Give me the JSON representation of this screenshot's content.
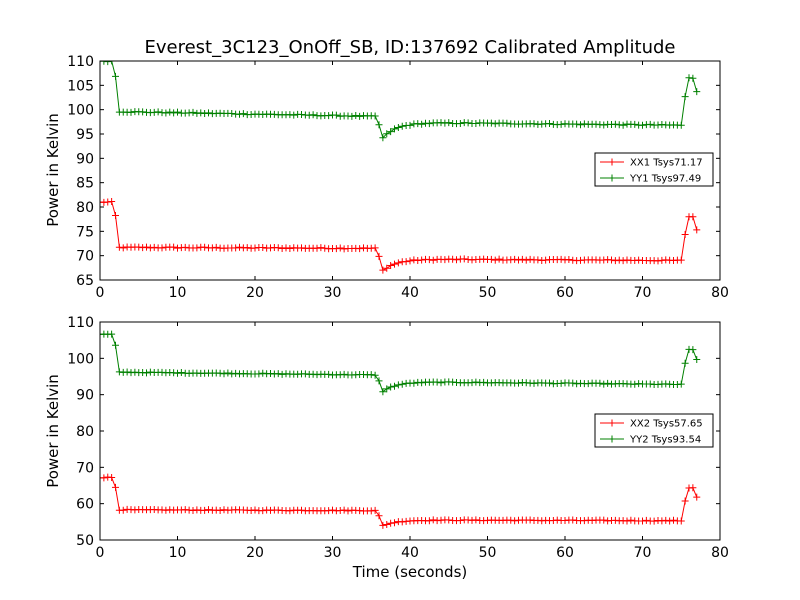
{
  "chart_data": {
    "title": "Everest_3C123_OnOff_SB, ID:137692 Calibrated Amplitude",
    "xlabel": "Time (seconds)",
    "colors": {
      "XX": "#ff0000",
      "YY": "#008000"
    },
    "panels": [
      {
        "type": "line",
        "ylabel": "Power in Kelvin",
        "xlim": [
          0,
          80
        ],
        "ylim": [
          65,
          110
        ],
        "xticks": [
          "0",
          "10",
          "20",
          "30",
          "40",
          "50",
          "60",
          "70",
          "80"
        ],
        "yticks": [
          "65",
          "70",
          "75",
          "80",
          "85",
          "90",
          "95",
          "100",
          "105",
          "110"
        ],
        "legend_position": "center-right",
        "series": [
          {
            "name": "XX1 Tsys71.17",
            "color": "#ff0000",
            "profile": {
              "start": 81.0,
              "step_down_t": 2.2,
              "plateau": 71.7,
              "plateau_drift": -0.2,
              "dip_t": 36.3,
              "dip_min": 66.7,
              "recover_level": 69.3,
              "recover_tau": 1.8,
              "late_drift": -0.3,
              "rise_t": 75.2,
              "end_level": 78.0,
              "t_end": 77.2
            }
          },
          {
            "name": "YY1 Tsys97.49",
            "color": "#008000",
            "profile": {
              "start": 110.0,
              "step_down_t": 2.2,
              "plateau": 99.6,
              "plateau_drift": -1.0,
              "dip_t": 36.3,
              "dip_min": 93.8,
              "recover_level": 97.4,
              "recover_tau": 1.8,
              "late_drift": -0.6,
              "rise_t": 75.2,
              "end_level": 106.5,
              "t_end": 77.2
            }
          }
        ]
      },
      {
        "type": "line",
        "ylabel": "Power in Kelvin",
        "xlim": [
          0,
          80
        ],
        "ylim": [
          50,
          110
        ],
        "xticks": [
          "0",
          "10",
          "20",
          "30",
          "40",
          "50",
          "60",
          "70",
          "80"
        ],
        "yticks": [
          "50",
          "60",
          "70",
          "80",
          "90",
          "100",
          "110"
        ],
        "legend_position": "center-right",
        "series": [
          {
            "name": "XX2 Tsys57.65",
            "color": "#ff0000",
            "profile": {
              "start": 67.2,
              "step_down_t": 2.2,
              "plateau": 58.3,
              "plateau_drift": -0.2,
              "dip_t": 36.3,
              "dip_min": 53.8,
              "recover_level": 55.5,
              "recover_tau": 1.8,
              "late_drift": -0.2,
              "rise_t": 75.2,
              "end_level": 64.4,
              "t_end": 77.2
            }
          },
          {
            "name": "YY2 Tsys93.54",
            "color": "#008000",
            "profile": {
              "start": 106.6,
              "step_down_t": 2.2,
              "plateau": 96.2,
              "plateau_drift": -0.8,
              "dip_t": 36.3,
              "dip_min": 90.6,
              "recover_level": 93.6,
              "recover_tau": 1.8,
              "late_drift": -0.8,
              "rise_t": 75.2,
              "end_level": 102.4,
              "t_end": 77.2
            }
          }
        ]
      }
    ]
  }
}
